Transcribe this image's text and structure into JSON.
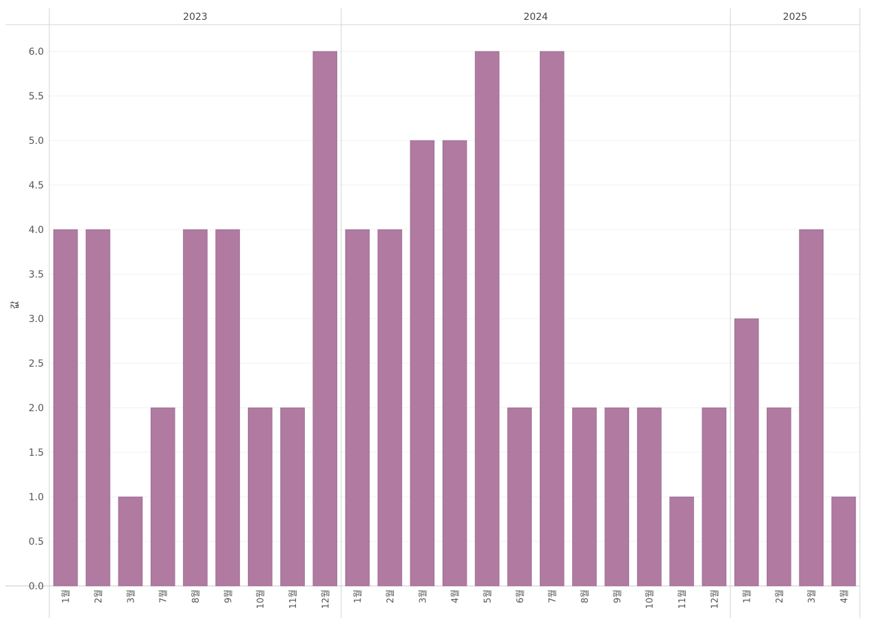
{
  "chart_data": {
    "type": "bar",
    "ylabel": "값",
    "ylim": [
      0,
      6
    ],
    "yticks": [
      "0.0",
      "0.5",
      "1.0",
      "1.5",
      "2.0",
      "2.5",
      "3.0",
      "3.5",
      "4.0",
      "4.5",
      "5.0",
      "5.5",
      "6.0"
    ],
    "grid": true,
    "bar_color": "#b07aa1",
    "groups": [
      {
        "year": "2023",
        "categories": [
          "1월",
          "2월",
          "3월",
          "7월",
          "8월",
          "9월",
          "10월",
          "11월",
          "12월"
        ],
        "values": [
          4,
          4,
          1,
          2,
          4,
          4,
          2,
          2,
          6
        ]
      },
      {
        "year": "2024",
        "categories": [
          "1월",
          "2월",
          "3월",
          "4월",
          "5월",
          "6월",
          "7월",
          "8월",
          "9월",
          "10월",
          "11월",
          "12월"
        ],
        "values": [
          4,
          4,
          5,
          5,
          6,
          2,
          6,
          2,
          2,
          2,
          1,
          2
        ]
      },
      {
        "year": "2025",
        "categories": [
          "1월",
          "2월",
          "3월",
          "4월"
        ],
        "values": [
          3,
          2,
          4,
          1
        ]
      }
    ]
  }
}
